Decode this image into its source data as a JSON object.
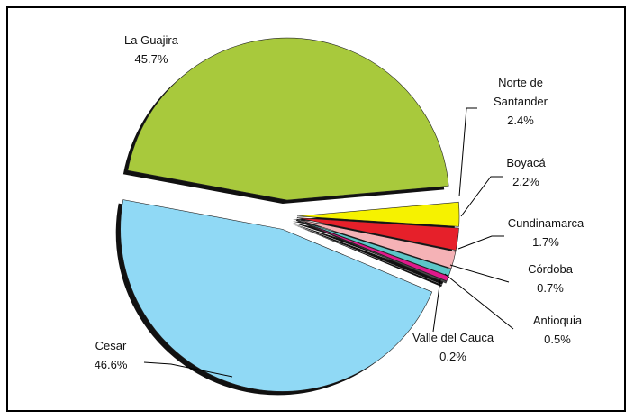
{
  "chart_data": {
    "type": "pie",
    "categories": [
      "La Guajira",
      "Norte de Santander",
      "Boyacá",
      "Cundinamarca",
      "Córdoba",
      "Antioquia",
      "Valle del Cauca",
      "Cesar"
    ],
    "values": [
      45.7,
      2.4,
      2.2,
      1.7,
      0.7,
      0.5,
      0.2,
      46.6
    ],
    "value_labels": [
      "45.7%",
      "2.4%",
      "2.2%",
      "1.7%",
      "0.7%",
      "0.5%",
      "0.2%",
      "46.6%"
    ],
    "colors": [
      "#a8c93c",
      "#f6f200",
      "#e6202a",
      "#f5b2b6",
      "#5cc6c8",
      "#e0198c",
      "#4a4a4a",
      "#90d9f5"
    ]
  }
}
